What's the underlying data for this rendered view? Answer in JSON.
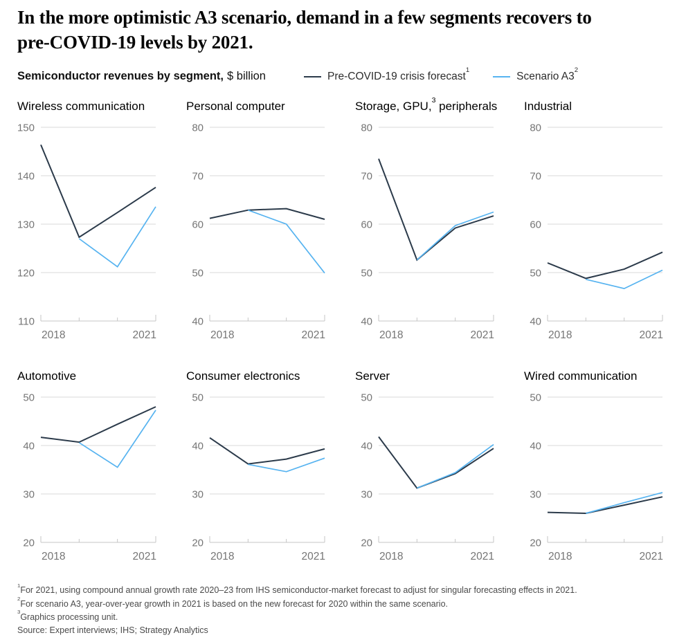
{
  "header": {
    "title": "In the more optimistic A3 scenario, demand in a few segments recovers to pre-COVID-19 levels by 2021.",
    "subtitle_bold": "Semiconductor revenues by segment,",
    "subtitle_unit": "$ billion"
  },
  "legend": [
    {
      "label": "Pre-COVID-19 crisis forecast",
      "sup": "1",
      "color": "#2b3a4a"
    },
    {
      "label": "Scenario A3",
      "sup": "2",
      "color": "#56b3f0"
    }
  ],
  "colors": {
    "pre_covid_line": "#2b3a4a",
    "scenario_line": "#56b3f0",
    "gridline": "#d9d9d9",
    "axis": "#c5c5c5",
    "tick_label": "#757575",
    "title_text": "#000000"
  },
  "chart_data": [
    {
      "type": "line",
      "title_pre": "Wireless communication",
      "title_sup": "",
      "title_post": "",
      "x": [
        "2018",
        "2019",
        "2020",
        "2021"
      ],
      "x_tick_labels": [
        "2018",
        "2021"
      ],
      "ylim": [
        110,
        150
      ],
      "yticks": [
        150,
        140,
        130,
        120,
        110
      ],
      "series": [
        {
          "name": "Pre-COVID-19 crisis forecast",
          "values": [
            146.4,
            127.3,
            132.4,
            137.6
          ]
        },
        {
          "name": "Scenario A3",
          "values": [
            null,
            127.0,
            121.2,
            133.6
          ]
        }
      ]
    },
    {
      "type": "line",
      "title_pre": "Personal computer",
      "title_sup": "",
      "title_post": "",
      "x": [
        "2018",
        "2019",
        "2020",
        "2021"
      ],
      "x_tick_labels": [
        "2018",
        "2021"
      ],
      "ylim": [
        40,
        80
      ],
      "yticks": [
        80,
        70,
        60,
        50,
        40
      ],
      "series": [
        {
          "name": "Pre-COVID-19 crisis forecast",
          "values": [
            61.2,
            62.9,
            63.2,
            61.0
          ]
        },
        {
          "name": "Scenario A3",
          "values": [
            null,
            62.9,
            60.0,
            49.9
          ]
        }
      ]
    },
    {
      "type": "line",
      "title_pre": "Storage, GPU,",
      "title_sup": "3",
      "title_post": " peripherals",
      "x": [
        "2018",
        "2019",
        "2020",
        "2021"
      ],
      "x_tick_labels": [
        "2018",
        "2021"
      ],
      "ylim": [
        40,
        80
      ],
      "yticks": [
        80,
        70,
        60,
        50,
        40
      ],
      "series": [
        {
          "name": "Pre-COVID-19 crisis forecast",
          "values": [
            73.5,
            52.6,
            59.2,
            61.7
          ]
        },
        {
          "name": "Scenario A3",
          "values": [
            null,
            52.6,
            59.7,
            62.5
          ]
        }
      ]
    },
    {
      "type": "line",
      "title_pre": "Industrial",
      "title_sup": "",
      "title_post": "",
      "x": [
        "2018",
        "2019",
        "2020",
        "2021"
      ],
      "x_tick_labels": [
        "2018",
        "2021"
      ],
      "ylim": [
        40,
        80
      ],
      "yticks": [
        80,
        70,
        60,
        50,
        40
      ],
      "series": [
        {
          "name": "Pre-COVID-19 crisis forecast",
          "values": [
            52.0,
            48.8,
            50.7,
            54.2
          ]
        },
        {
          "name": "Scenario A3",
          "values": [
            null,
            48.6,
            46.7,
            50.5
          ]
        }
      ]
    },
    {
      "type": "line",
      "title_pre": "Automotive",
      "title_sup": "",
      "title_post": "",
      "x": [
        "2018",
        "2019",
        "2020",
        "2021"
      ],
      "x_tick_labels": [
        "2018",
        "2021"
      ],
      "ylim": [
        20,
        50
      ],
      "yticks": [
        50,
        40,
        30,
        20
      ],
      "series": [
        {
          "name": "Pre-COVID-19 crisis forecast",
          "values": [
            41.7,
            40.7,
            44.4,
            48.0
          ]
        },
        {
          "name": "Scenario A3",
          "values": [
            null,
            40.6,
            35.5,
            47.3
          ]
        }
      ]
    },
    {
      "type": "line",
      "title_pre": "Consumer electronics",
      "title_sup": "",
      "title_post": "",
      "x": [
        "2018",
        "2019",
        "2020",
        "2021"
      ],
      "x_tick_labels": [
        "2018",
        "2021"
      ],
      "ylim": [
        20,
        50
      ],
      "yticks": [
        50,
        40,
        30,
        20
      ],
      "series": [
        {
          "name": "Pre-COVID-19 crisis forecast",
          "values": [
            41.6,
            36.2,
            37.2,
            39.3
          ]
        },
        {
          "name": "Scenario A3",
          "values": [
            null,
            36.1,
            34.6,
            37.4
          ]
        }
      ]
    },
    {
      "type": "line",
      "title_pre": "Server",
      "title_sup": "",
      "title_post": "",
      "x": [
        "2018",
        "2019",
        "2020",
        "2021"
      ],
      "x_tick_labels": [
        "2018",
        "2021"
      ],
      "ylim": [
        20,
        50
      ],
      "yticks": [
        50,
        40,
        30,
        20
      ],
      "series": [
        {
          "name": "Pre-COVID-19 crisis forecast",
          "values": [
            41.8,
            31.2,
            34.2,
            39.4
          ]
        },
        {
          "name": "Scenario A3",
          "values": [
            null,
            31.2,
            34.4,
            40.2
          ]
        }
      ]
    },
    {
      "type": "line",
      "title_pre": "Wired communication",
      "title_sup": "",
      "title_post": "",
      "x": [
        "2018",
        "2019",
        "2020",
        "2021"
      ],
      "x_tick_labels": [
        "2018",
        "2021"
      ],
      "ylim": [
        20,
        50
      ],
      "yticks": [
        50,
        40,
        30,
        20
      ],
      "series": [
        {
          "name": "Pre-COVID-19 crisis forecast",
          "values": [
            26.2,
            26.0,
            27.7,
            29.4
          ]
        },
        {
          "name": "Scenario A3",
          "values": [
            null,
            26.0,
            28.2,
            30.3
          ]
        }
      ]
    }
  ],
  "footnotes": [
    {
      "sup": "1",
      "text": "For 2021, using compound annual growth rate 2020–23 from IHS semiconductor-market forecast to adjust for singular forecasting effects in 2021."
    },
    {
      "sup": "2",
      "text": "For scenario A3, year-over-year growth in 2021 is based on the new forecast for 2020 within the same scenario."
    },
    {
      "sup": "3",
      "text": "Graphics processing unit."
    }
  ],
  "source": "Source: Expert interviews; IHS; Strategy Analytics"
}
